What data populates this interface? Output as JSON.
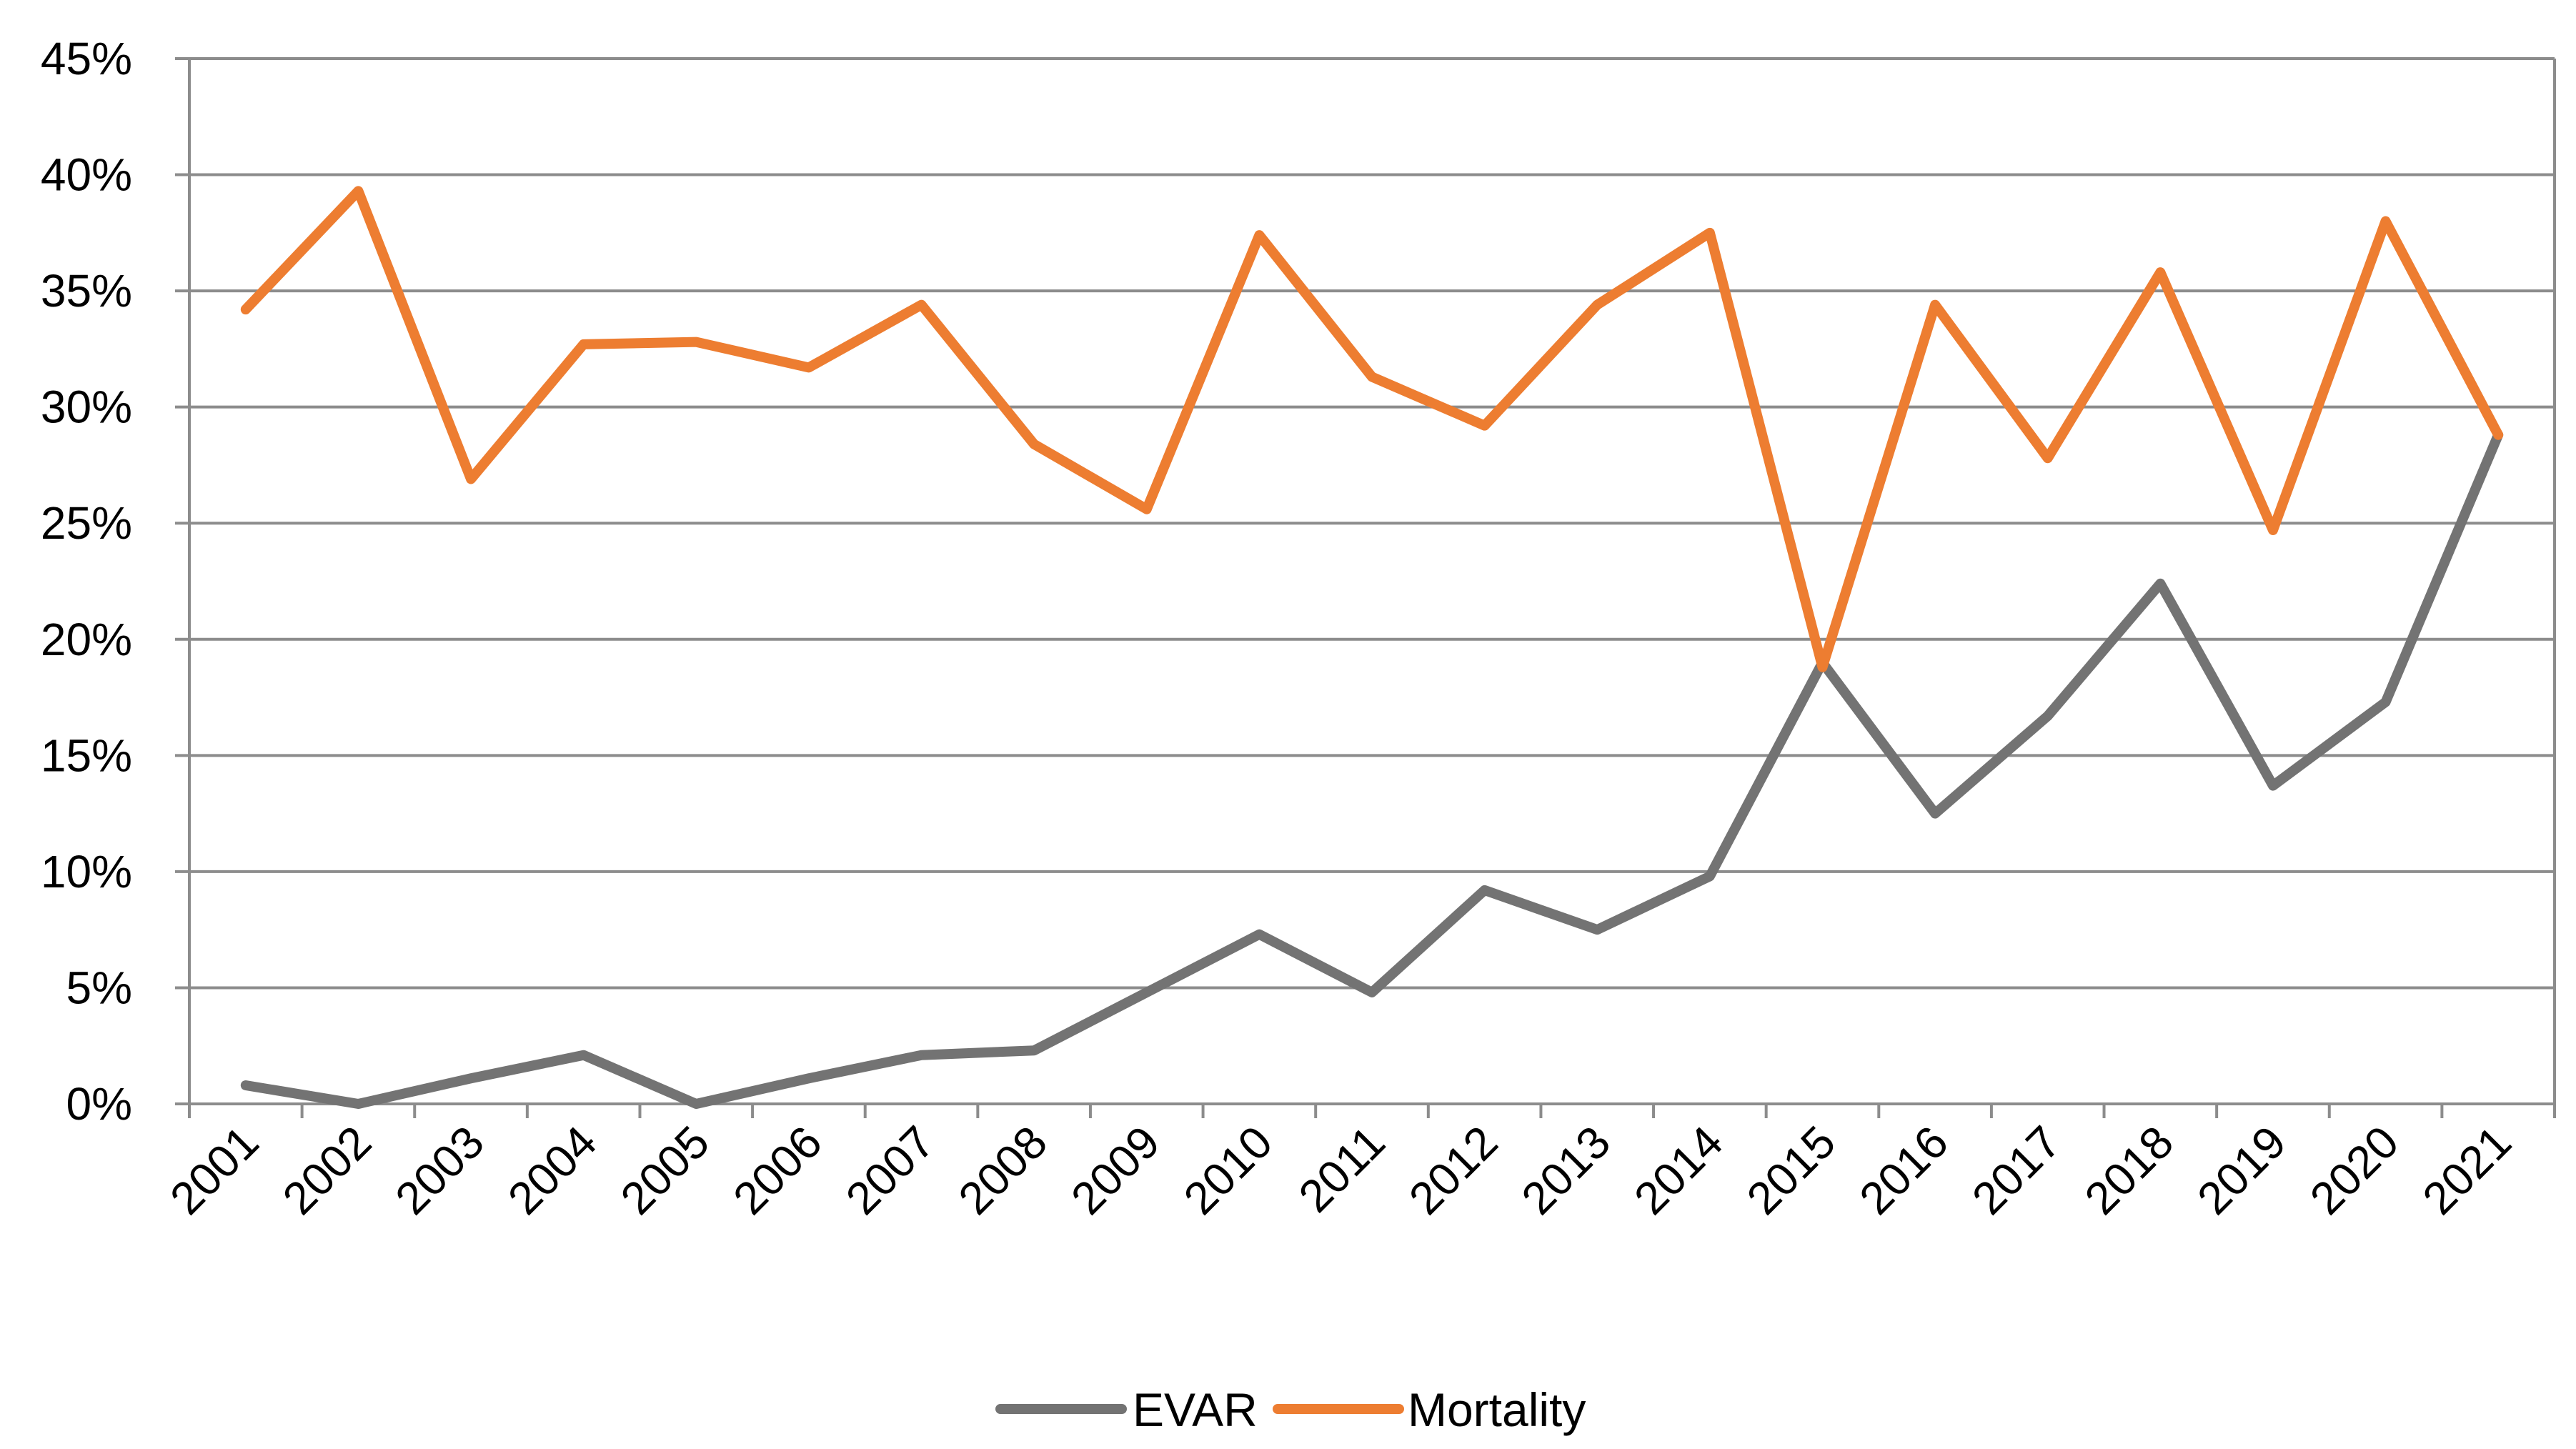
{
  "chart_data": {
    "type": "line",
    "title": "",
    "xlabel": "",
    "ylabel": "",
    "categories": [
      "2001",
      "2002",
      "2003",
      "2004",
      "2005",
      "2006",
      "2007",
      "2008",
      "2009",
      "2010",
      "2011",
      "2012",
      "2013",
      "2014",
      "2015",
      "2016",
      "2017",
      "2018",
      "2019",
      "2020",
      "2021"
    ],
    "ylim": [
      0,
      45
    ],
    "yticks": [
      0,
      5,
      10,
      15,
      20,
      25,
      30,
      35,
      40,
      45
    ],
    "ytick_labels": [
      "0%",
      "5%",
      "10%",
      "15%",
      "20%",
      "25%",
      "30%",
      "35%",
      "40%",
      "45%"
    ],
    "grid": true,
    "legend_position": "bottom-center",
    "series": [
      {
        "name": "EVAR",
        "color": "#737373",
        "values": [
          0.8,
          0.0,
          1.1,
          2.1,
          0.0,
          1.1,
          2.1,
          2.3,
          4.8,
          7.3,
          4.8,
          9.2,
          7.5,
          9.8,
          19.0,
          12.5,
          16.7,
          22.4,
          13.7,
          17.3,
          28.8
        ]
      },
      {
        "name": "Mortality",
        "color": "#ED7D31",
        "values": [
          34.2,
          39.3,
          26.9,
          32.7,
          32.8,
          31.7,
          34.4,
          28.4,
          25.6,
          37.4,
          31.3,
          29.2,
          34.4,
          37.5,
          18.8,
          34.4,
          27.8,
          35.8,
          24.7,
          38.0,
          28.8
        ]
      }
    ]
  }
}
